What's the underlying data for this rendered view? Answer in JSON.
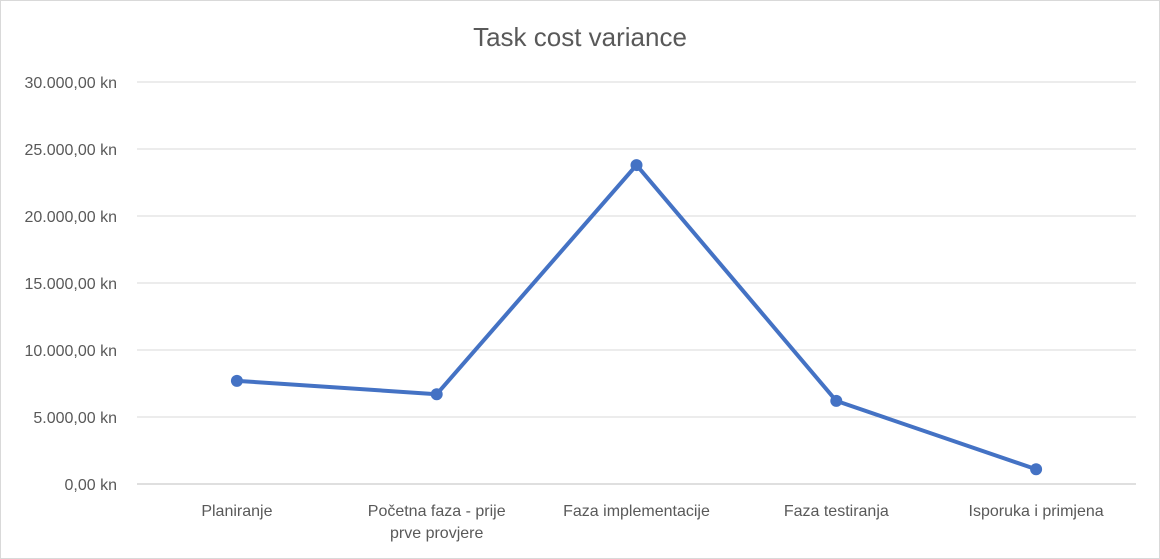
{
  "chart_data": {
    "type": "line",
    "title": "Task cost variance",
    "xlabel": "",
    "ylabel": "",
    "categories": [
      [
        "Planiranje"
      ],
      [
        "Početna faza - prije",
        "prve provjere"
      ],
      [
        "Faza implementacije"
      ],
      [
        "Faza testiranja"
      ],
      [
        "Isporuka i primjena"
      ]
    ],
    "series": [
      {
        "name": "Task cost variance",
        "values": [
          7700,
          6700,
          23800,
          6200,
          1100
        ],
        "color": "#4472c4"
      }
    ],
    "ylim": [
      0,
      30000
    ],
    "yticks": [
      0,
      5000,
      10000,
      15000,
      20000,
      25000,
      30000
    ],
    "ytick_labels": [
      "0,00 kn",
      "5.000,00 kn",
      "10.000,00 kn",
      "15.000,00 kn",
      "20.000,00 kn",
      "25.000,00 kn",
      "30.000,00 kn"
    ],
    "grid": true,
    "gridColor": "#d9d9d9",
    "axisColor": "#bfbfbf"
  }
}
